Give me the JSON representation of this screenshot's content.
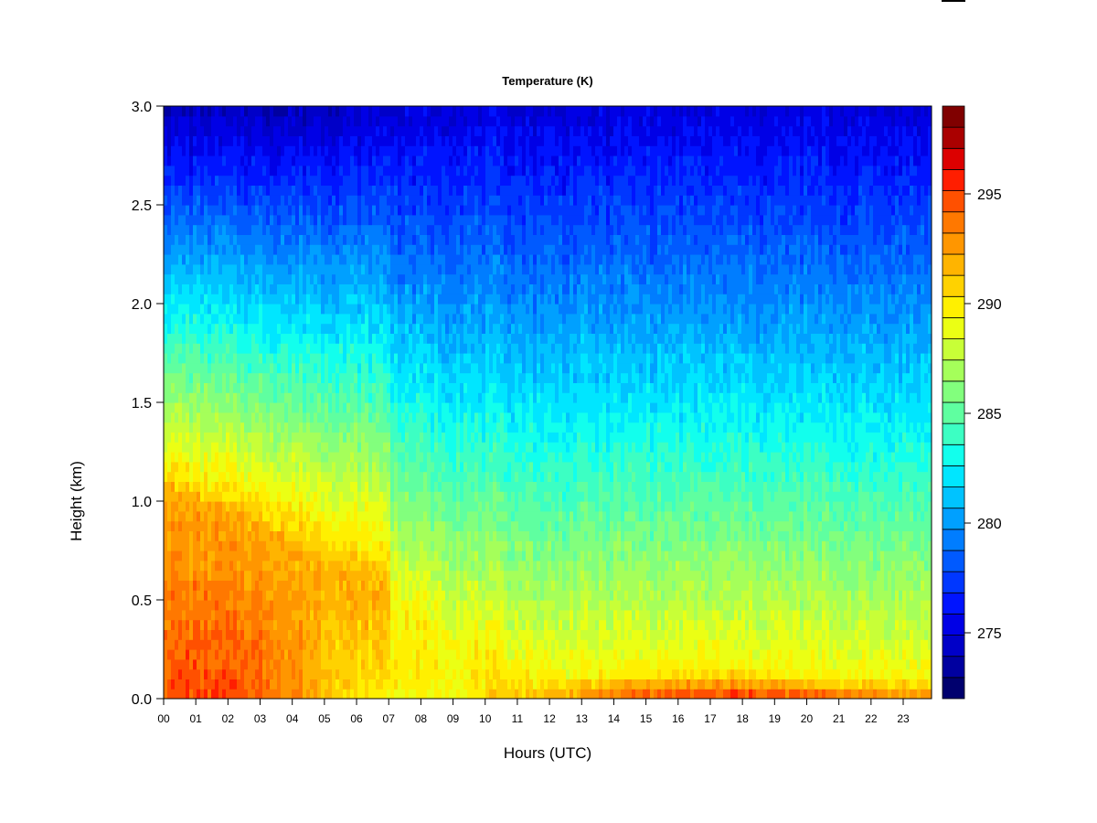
{
  "chart_data": {
    "type": "heatmap",
    "title": "Temperature (K)",
    "xlabel": "Hours (UTC)",
    "ylabel": "Height (km)",
    "xlim": [
      0,
      24
    ],
    "ylim": [
      0.0,
      3.0
    ],
    "x_ticks": [
      "00",
      "01",
      "02",
      "03",
      "04",
      "05",
      "06",
      "07",
      "08",
      "09",
      "10",
      "11",
      "12",
      "13",
      "14",
      "15",
      "16",
      "17",
      "18",
      "19",
      "20",
      "21",
      "22",
      "23"
    ],
    "y_ticks": [
      "0.0",
      "0.5",
      "1.0",
      "1.5",
      "2.0",
      "2.5",
      "3.0"
    ],
    "colorbar": {
      "range": [
        272,
        299
      ],
      "levels": 27,
      "ticks": [
        "275",
        "280",
        "285",
        "290",
        "295"
      ],
      "colors": [
        "#00006e",
        "#0000a0",
        "#0000c8",
        "#0000e6",
        "#0014ff",
        "#0037ff",
        "#005aff",
        "#007dff",
        "#00a0ff",
        "#00c3ff",
        "#00e6ff",
        "#12ffed",
        "#3cffc3",
        "#5fffa0",
        "#82ff7d",
        "#a5ff5a",
        "#c8ff37",
        "#ebff14",
        "#fff000",
        "#ffd200",
        "#ffb400",
        "#ff9600",
        "#ff7800",
        "#ff5000",
        "#ff1e00",
        "#dc0000",
        "#aa0000",
        "#800000"
      ]
    },
    "profiles": [
      {
        "hour": 0,
        "t0": 295.0,
        "t_top": 274.0,
        "warm_layer_top_km": 1.1
      },
      {
        "hour": 3,
        "t0": 294.5,
        "t_top": 274.0,
        "warm_layer_top_km": 0.9
      },
      {
        "hour": 6,
        "t0": 290.0,
        "t_top": 274.5,
        "warm_layer_top_km": 0.6
      },
      {
        "hour": 9,
        "t0": 289.5,
        "t_top": 275.0,
        "warm_layer_top_km": 0.3
      },
      {
        "hour": 12,
        "t0": 292.0,
        "t_top": 275.0,
        "warm_layer_top_km": 0.1
      },
      {
        "hour": 15,
        "t0": 295.0,
        "t_top": 275.0,
        "warm_layer_top_km": 0.15
      },
      {
        "hour": 18,
        "t0": 295.5,
        "t_top": 275.0,
        "warm_layer_top_km": 0.15
      },
      {
        "hour": 21,
        "t0": 294.5,
        "t_top": 275.0,
        "warm_layer_top_km": 0.1
      },
      {
        "hour": 24,
        "t0": 293.0,
        "t_top": 275.0,
        "warm_layer_top_km": 0.1
      }
    ]
  }
}
